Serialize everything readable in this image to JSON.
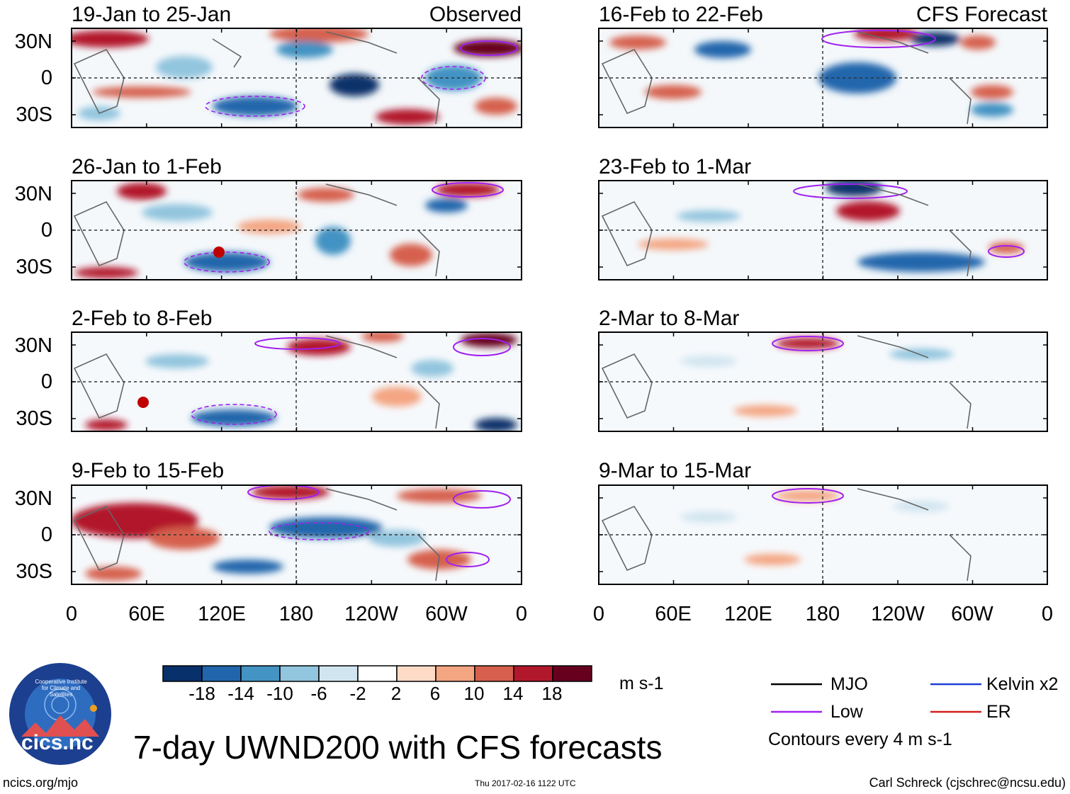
{
  "panels": {
    "observed": [
      {
        "title": "19-Jan to 25-Jan",
        "tag": "Observed"
      },
      {
        "title": "26-Jan to 1-Feb"
      },
      {
        "title": "2-Feb to 8-Feb"
      },
      {
        "title": "9-Feb to 15-Feb"
      }
    ],
    "forecast": [
      {
        "title": "16-Feb to 22-Feb",
        "tag": "CFS Forecast"
      },
      {
        "title": "23-Feb to 1-Mar"
      },
      {
        "title": "2-Mar to 8-Mar"
      },
      {
        "title": "9-Mar to 15-Mar"
      }
    ]
  },
  "axes": {
    "y_labels": [
      "30N",
      "0",
      "30S"
    ],
    "x_labels": [
      "0",
      "60E",
      "120E",
      "180",
      "120W",
      "60W",
      "0"
    ]
  },
  "colorbar": {
    "ticks": [
      "-18",
      "-14",
      "-10",
      "-6",
      "-2",
      "2",
      "6",
      "10",
      "14",
      "18"
    ],
    "colors": [
      "#08306b",
      "#2166ac",
      "#4393c3",
      "#92c5de",
      "#d1e5f0",
      "#ffffff",
      "#fddbc7",
      "#f4a582",
      "#d6604d",
      "#b2182b",
      "#67001f"
    ],
    "units": "m s-1"
  },
  "legend": {
    "items": [
      {
        "label": "MJO",
        "color": "#000000"
      },
      {
        "label": "Kelvin x2",
        "color": "#1f3fd6"
      },
      {
        "label": "Low",
        "color": "#a020f0"
      },
      {
        "label": "ER",
        "color": "#d42020"
      }
    ],
    "note": "Contours every 4 m s-1"
  },
  "logo": {
    "text": "cics.nc",
    "ring_text": "Cooperative Institute for Climate and Satellites"
  },
  "title": "7-day UWND200 with CFS forecasts",
  "footer": {
    "left": "ncics.org/mjo",
    "center": "Thu 2017-02-16 1122 UTC",
    "right": "Carl Schreck (cjschrec@ncsu.edu)"
  }
}
